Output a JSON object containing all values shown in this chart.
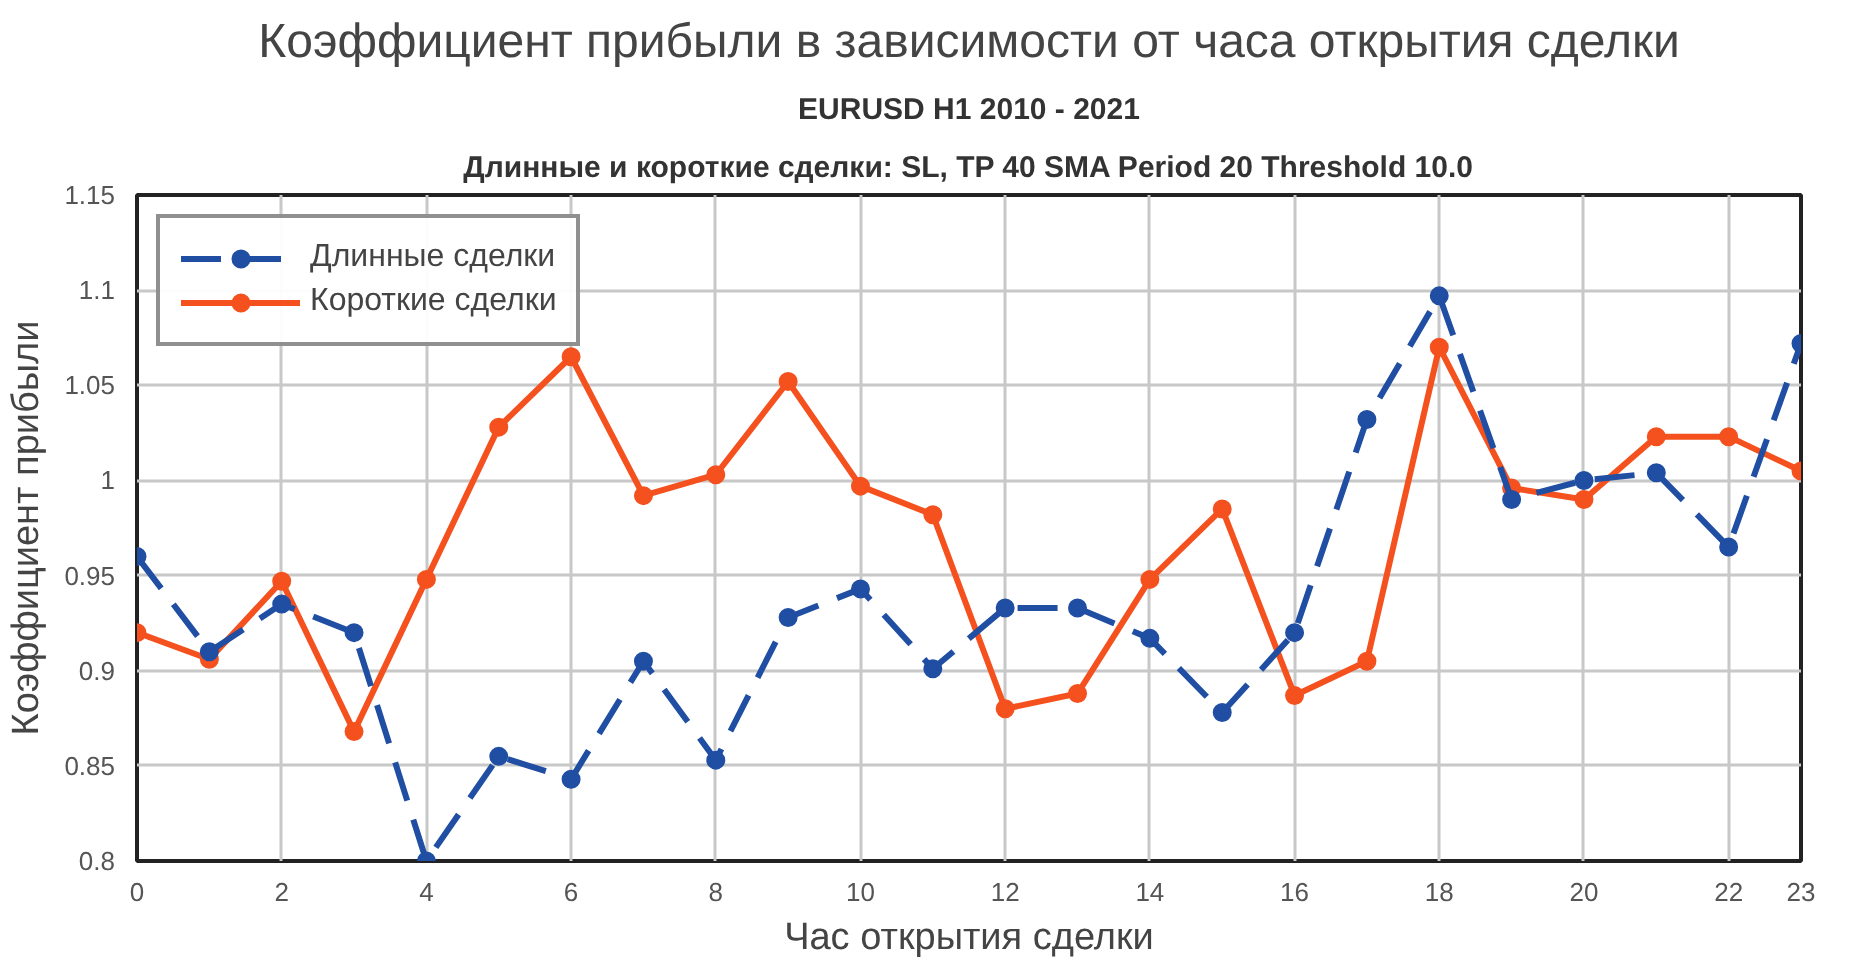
{
  "chart_data": {
    "type": "line",
    "title": "Коэффициент прибыли в зависимости от часа открытия сделки",
    "subtitle": "EURUSD H1 2010 - 2021",
    "annotations": [
      "Длинные и короткие сделки: SL, TP 40 SMA Period 20 Threshold 10.0"
    ],
    "xlabel": "Час открытия сделки",
    "ylabel": "Коэффициент прибыли",
    "x": [
      0,
      1,
      2,
      3,
      4,
      5,
      6,
      7,
      8,
      9,
      10,
      11,
      12,
      13,
      14,
      15,
      16,
      17,
      18,
      19,
      20,
      21,
      22,
      23
    ],
    "series": [
      {
        "name": "Длинные сделки",
        "color": "#1f4ea3",
        "line_style": "dashed",
        "marker": "circle",
        "values": [
          0.96,
          0.91,
          0.935,
          0.92,
          0.8,
          0.855,
          0.843,
          0.905,
          0.853,
          0.928,
          0.943,
          0.901,
          0.933,
          0.933,
          0.917,
          0.878,
          0.92,
          1.032,
          1.097,
          0.99,
          1.0,
          1.004,
          0.965,
          1.072
        ]
      },
      {
        "name": "Короткие сделки",
        "color": "#f4511e",
        "line_style": "solid",
        "marker": "circle",
        "values": [
          0.92,
          0.906,
          0.947,
          0.868,
          0.948,
          1.028,
          1.065,
          0.992,
          1.003,
          1.052,
          0.997,
          0.982,
          0.88,
          0.888,
          0.948,
          0.985,
          0.887,
          0.905,
          1.07,
          0.996,
          0.99,
          1.023,
          1.023,
          1.005
        ]
      }
    ],
    "xlim": [
      0,
      23
    ],
    "ylim": [
      0.8,
      1.15
    ],
    "xticks": [
      0,
      2,
      4,
      6,
      8,
      10,
      12,
      14,
      16,
      18,
      20,
      22,
      23
    ],
    "yticks": [
      0.8,
      0.85,
      0.9,
      0.95,
      1,
      1.05,
      1.1,
      1.15
    ],
    "grid": true,
    "legend": "top left"
  }
}
